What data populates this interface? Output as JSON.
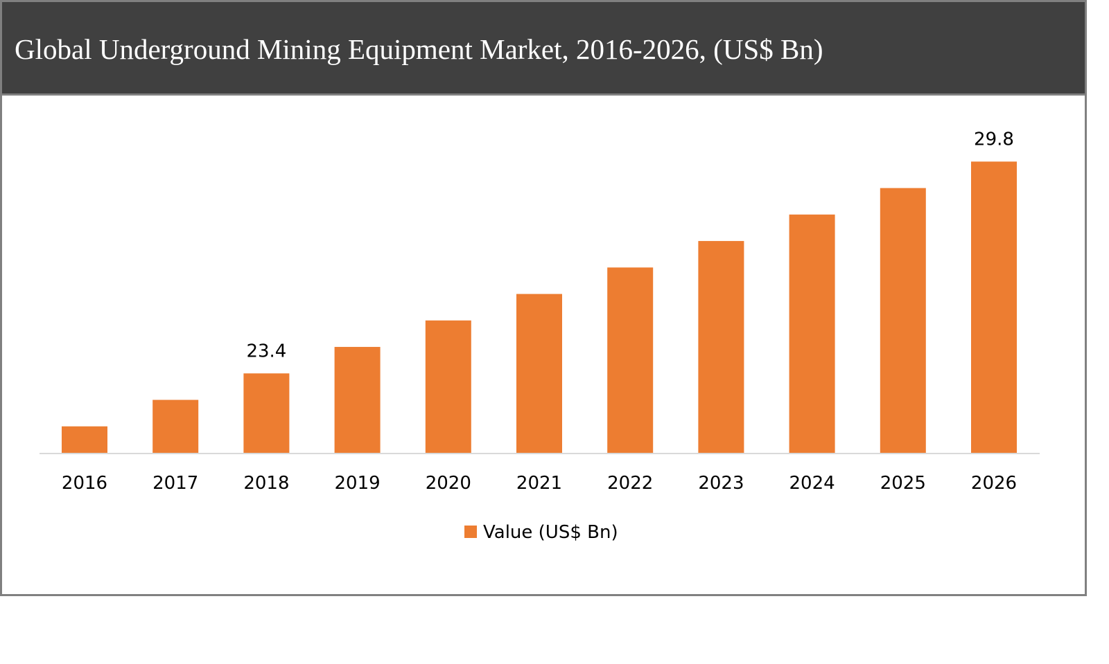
{
  "chart_data": {
    "type": "bar",
    "title": "Global Underground Mining Equipment Market, 2016-2026, (US$ Bn)",
    "categories": [
      "2016",
      "2017",
      "2018",
      "2019",
      "2020",
      "2021",
      "2022",
      "2023",
      "2024",
      "2025",
      "2026"
    ],
    "series": [
      {
        "name": "Value (US$ Bn)",
        "values": [
          21.8,
          22.6,
          23.4,
          24.2,
          25.0,
          25.8,
          26.6,
          27.4,
          28.2,
          29.0,
          29.8
        ],
        "color": "#ED7D31"
      }
    ],
    "data_labels": [
      {
        "category": "2018",
        "text": "23.4"
      },
      {
        "category": "2026",
        "text": "29.8"
      }
    ],
    "ylim": [
      21,
      30.9
    ],
    "grid": false,
    "legend_position": "bottom",
    "xlabel": "",
    "ylabel": ""
  },
  "colors": {
    "header_bg": "#404040",
    "border": "#808080",
    "axis": "#D9D9D9"
  }
}
